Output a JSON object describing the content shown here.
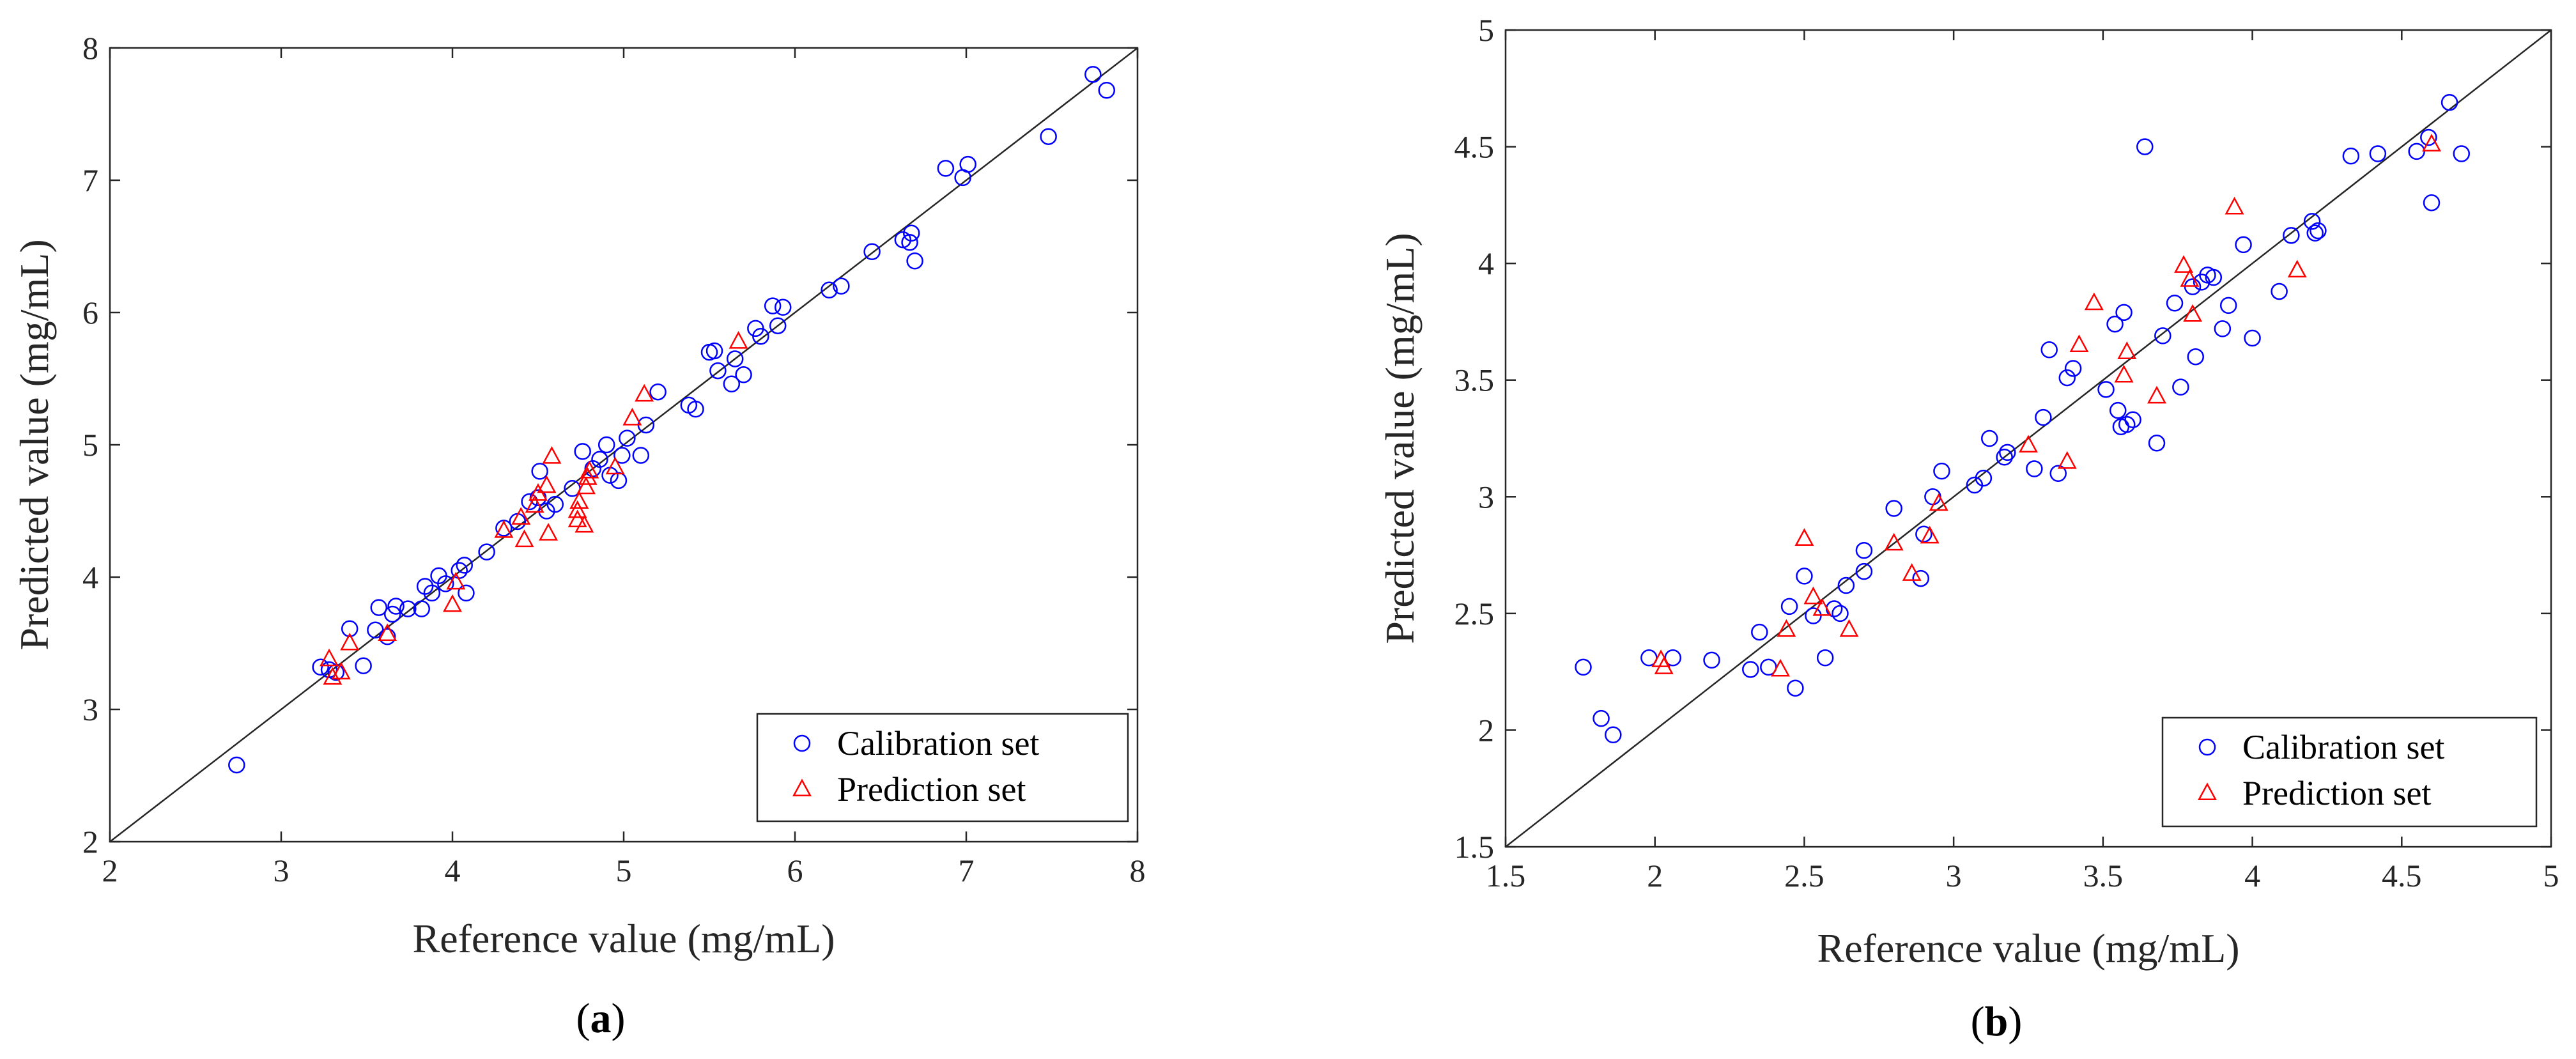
{
  "chart_data": [
    {
      "type": "scatter",
      "panel_label": "a",
      "xlabel": "Reference value (mg/mL)",
      "ylabel": "Predicted value (mg/mL)",
      "xlim": [
        2,
        8
      ],
      "ylim": [
        2,
        8
      ],
      "xticks": [
        "2",
        "3",
        "4",
        "5",
        "6",
        "7",
        "8"
      ],
      "yticks": [
        "2",
        "3",
        "4",
        "5",
        "6",
        "7",
        "8"
      ],
      "grid": false,
      "legend_position": "bottom-right",
      "reference_line": "y = x",
      "series": [
        {
          "name": "Calibration set",
          "marker": "circle",
          "color": "#0000ff",
          "points": [
            [
              2.74,
              2.58
            ],
            [
              3.23,
              3.32
            ],
            [
              3.28,
              3.3
            ],
            [
              3.32,
              3.28
            ],
            [
              3.4,
              3.61
            ],
            [
              3.48,
              3.33
            ],
            [
              3.55,
              3.6
            ],
            [
              3.57,
              3.77
            ],
            [
              3.62,
              3.55
            ],
            [
              3.65,
              3.72
            ],
            [
              3.67,
              3.78
            ],
            [
              3.74,
              3.76
            ],
            [
              3.82,
              3.76
            ],
            [
              3.84,
              3.93
            ],
            [
              3.88,
              3.88
            ],
            [
              3.92,
              4.01
            ],
            [
              3.96,
              3.95
            ],
            [
              4.04,
              4.05
            ],
            [
              4.07,
              4.09
            ],
            [
              4.08,
              3.88
            ],
            [
              4.2,
              4.19
            ],
            [
              4.3,
              4.37
            ],
            [
              4.38,
              4.42
            ],
            [
              4.45,
              4.57
            ],
            [
              4.5,
              4.6
            ],
            [
              4.51,
              4.8
            ],
            [
              4.55,
              4.5
            ],
            [
              4.6,
              4.55
            ],
            [
              4.7,
              4.67
            ],
            [
              4.76,
              4.95
            ],
            [
              4.82,
              4.82
            ],
            [
              4.86,
              4.89
            ],
            [
              4.9,
              5.0
            ],
            [
              4.92,
              4.77
            ],
            [
              4.97,
              4.73
            ],
            [
              4.99,
              4.92
            ],
            [
              5.02,
              5.05
            ],
            [
              5.1,
              4.92
            ],
            [
              5.13,
              5.15
            ],
            [
              5.2,
              5.4
            ],
            [
              5.38,
              5.3
            ],
            [
              5.42,
              5.27
            ],
            [
              5.5,
              5.7
            ],
            [
              5.53,
              5.71
            ],
            [
              5.55,
              5.56
            ],
            [
              5.63,
              5.46
            ],
            [
              5.65,
              5.65
            ],
            [
              5.7,
              5.53
            ],
            [
              5.77,
              5.88
            ],
            [
              5.8,
              5.82
            ],
            [
              5.87,
              6.05
            ],
            [
              5.9,
              5.9
            ],
            [
              5.93,
              6.04
            ],
            [
              6.2,
              6.17
            ],
            [
              6.27,
              6.2
            ],
            [
              6.45,
              6.46
            ],
            [
              6.63,
              6.55
            ],
            [
              6.67,
              6.53
            ],
            [
              6.68,
              6.6
            ],
            [
              6.7,
              6.39
            ],
            [
              6.88,
              7.09
            ],
            [
              6.98,
              7.02
            ],
            [
              7.01,
              7.12
            ],
            [
              7.48,
              7.33
            ],
            [
              7.74,
              7.8
            ],
            [
              7.82,
              7.68
            ]
          ]
        },
        {
          "name": "Prediction set",
          "marker": "triangle",
          "color": "#ff0000",
          "points": [
            [
              3.28,
              3.38
            ],
            [
              3.3,
              3.24
            ],
            [
              3.35,
              3.28
            ],
            [
              3.4,
              3.5
            ],
            [
              3.62,
              3.57
            ],
            [
              4.0,
              3.79
            ],
            [
              4.02,
              3.96
            ],
            [
              4.3,
              4.35
            ],
            [
              4.4,
              4.45
            ],
            [
              4.42,
              4.28
            ],
            [
              4.48,
              4.54
            ],
            [
              4.5,
              4.63
            ],
            [
              4.55,
              4.69
            ],
            [
              4.56,
              4.33
            ],
            [
              4.58,
              4.91
            ],
            [
              4.73,
              4.43
            ],
            [
              4.73,
              4.5
            ],
            [
              4.74,
              4.57
            ],
            [
              4.77,
              4.39
            ],
            [
              4.78,
              4.68
            ],
            [
              4.79,
              4.75
            ],
            [
              4.8,
              4.8
            ],
            [
              4.95,
              4.83
            ],
            [
              5.05,
              5.2
            ],
            [
              5.12,
              5.38
            ],
            [
              5.67,
              5.78
            ]
          ]
        }
      ]
    },
    {
      "type": "scatter",
      "panel_label": "b",
      "xlabel": "Reference value (mg/mL)",
      "ylabel": "Predicted value (mg/mL)",
      "xlim": [
        1.5,
        5
      ],
      "ylim": [
        1.5,
        5
      ],
      "xticks": [
        "1.5",
        "2",
        "2.5",
        "3",
        "3.5",
        "4",
        "4.5",
        "5"
      ],
      "yticks": [
        "1.5",
        "2",
        "2.5",
        "3",
        "3.5",
        "4",
        "4.5",
        "5"
      ],
      "grid": false,
      "legend_position": "bottom-right",
      "reference_line": "y = x",
      "series": [
        {
          "name": "Calibration set",
          "marker": "circle",
          "color": "#0000ff",
          "points": [
            [
              1.76,
              2.27
            ],
            [
              1.82,
              2.05
            ],
            [
              1.86,
              1.98
            ],
            [
              1.98,
              2.31
            ],
            [
              2.06,
              2.31
            ],
            [
              2.19,
              2.3
            ],
            [
              2.32,
              2.26
            ],
            [
              2.35,
              2.42
            ],
            [
              2.38,
              2.27
            ],
            [
              2.45,
              2.53
            ],
            [
              2.47,
              2.18
            ],
            [
              2.5,
              2.66
            ],
            [
              2.53,
              2.49
            ],
            [
              2.57,
              2.31
            ],
            [
              2.6,
              2.52
            ],
            [
              2.62,
              2.5
            ],
            [
              2.64,
              2.62
            ],
            [
              2.7,
              2.68
            ],
            [
              2.7,
              2.77
            ],
            [
              2.8,
              2.95
            ],
            [
              2.89,
              2.65
            ],
            [
              2.9,
              2.84
            ],
            [
              2.93,
              3.0
            ],
            [
              2.96,
              3.11
            ],
            [
              3.07,
              3.05
            ],
            [
              3.1,
              3.08
            ],
            [
              3.12,
              3.25
            ],
            [
              3.17,
              3.17
            ],
            [
              3.18,
              3.19
            ],
            [
              3.27,
              3.12
            ],
            [
              3.3,
              3.34
            ],
            [
              3.32,
              3.63
            ],
            [
              3.35,
              3.1
            ],
            [
              3.38,
              3.51
            ],
            [
              3.4,
              3.55
            ],
            [
              3.51,
              3.46
            ],
            [
              3.54,
              3.74
            ],
            [
              3.55,
              3.37
            ],
            [
              3.56,
              3.3
            ],
            [
              3.57,
              3.79
            ],
            [
              3.58,
              3.31
            ],
            [
              3.6,
              3.33
            ],
            [
              3.64,
              4.5
            ],
            [
              3.68,
              3.23
            ],
            [
              3.7,
              3.69
            ],
            [
              3.74,
              3.83
            ],
            [
              3.76,
              3.47
            ],
            [
              3.8,
              3.9
            ],
            [
              3.81,
              3.6
            ],
            [
              3.83,
              3.92
            ],
            [
              3.85,
              3.95
            ],
            [
              3.87,
              3.94
            ],
            [
              3.9,
              3.72
            ],
            [
              3.92,
              3.82
            ],
            [
              3.97,
              4.08
            ],
            [
              4.0,
              3.68
            ],
            [
              4.09,
              3.88
            ],
            [
              4.13,
              4.12
            ],
            [
              4.2,
              4.18
            ],
            [
              4.21,
              4.13
            ],
            [
              4.22,
              4.14
            ],
            [
              4.33,
              4.46
            ],
            [
              4.42,
              4.47
            ],
            [
              4.55,
              4.48
            ],
            [
              4.59,
              4.54
            ],
            [
              4.6,
              4.26
            ],
            [
              4.66,
              4.69
            ],
            [
              4.7,
              4.47
            ]
          ]
        },
        {
          "name": "Prediction set",
          "marker": "triangle",
          "color": "#ff0000",
          "points": [
            [
              2.02,
              2.3
            ],
            [
              2.03,
              2.27
            ],
            [
              2.42,
              2.26
            ],
            [
              2.44,
              2.43
            ],
            [
              2.5,
              2.82
            ],
            [
              2.53,
              2.57
            ],
            [
              2.56,
              2.52
            ],
            [
              2.65,
              2.43
            ],
            [
              2.8,
              2.8
            ],
            [
              2.86,
              2.67
            ],
            [
              2.92,
              2.83
            ],
            [
              2.95,
              2.97
            ],
            [
              3.25,
              3.22
            ],
            [
              3.38,
              3.15
            ],
            [
              3.42,
              3.65
            ],
            [
              3.47,
              3.83
            ],
            [
              3.57,
              3.52
            ],
            [
              3.58,
              3.62
            ],
            [
              3.68,
              3.43
            ],
            [
              3.77,
              3.99
            ],
            [
              3.79,
              3.93
            ],
            [
              3.8,
              3.78
            ],
            [
              3.94,
              4.24
            ],
            [
              4.15,
              3.97
            ],
            [
              4.6,
              4.51
            ]
          ]
        }
      ]
    }
  ]
}
